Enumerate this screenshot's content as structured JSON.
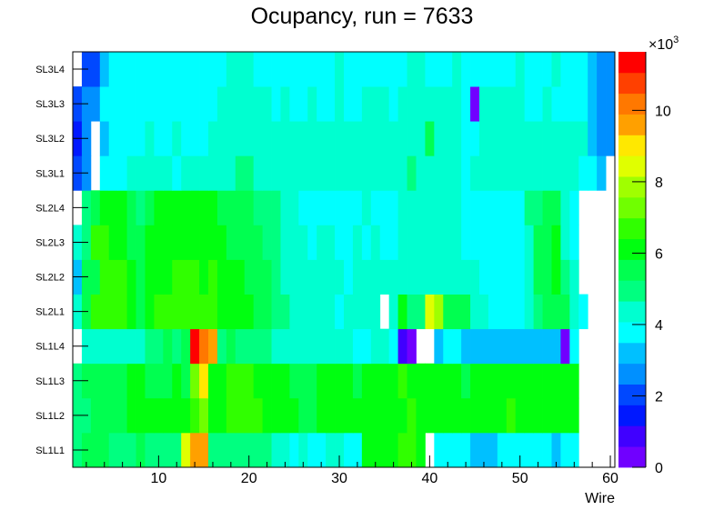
{
  "chart_data": {
    "type": "heatmap",
    "title": "Ocupancy, run = 7633",
    "xlabel": "Wire",
    "ylabel": "",
    "xlim": [
      0.5,
      60.5
    ],
    "x_bins": 60,
    "x_ticks": [
      "10",
      "20",
      "30",
      "40",
      "50",
      "60"
    ],
    "y_categories": [
      "SL1L1",
      "SL1L2",
      "SL1L3",
      "SL1L4",
      "SL2L1",
      "SL2L2",
      "SL2L3",
      "SL2L4",
      "SL3L1",
      "SL3L2",
      "SL3L3",
      "SL3L4"
    ],
    "z_range": [
      0,
      11640
    ],
    "z_ticks": [
      "0",
      "2",
      "4",
      "6",
      "8",
      "10"
    ],
    "z_tick_values": [
      0,
      2000,
      4000,
      6000,
      8000,
      10000
    ],
    "z_multiplier_label": "×10",
    "z_multiplier_exp": "3",
    "palette": [
      "#7000ff",
      "#4000ff",
      "#0018ff",
      "#0048ff",
      "#0090ff",
      "#00c0ff",
      "#00ffff",
      "#00ffd0",
      "#00ff80",
      "#00ff50",
      "#00ff10",
      "#30ff00",
      "#70ff00",
      "#a0ff00",
      "#e0ff00",
      "#ffe800",
      "#ffa000",
      "#ff7800",
      "#ff4000",
      "#ff0000"
    ],
    "values": [
      [
        4950,
        5530,
        5530,
        5530,
        4950,
        4950,
        4950,
        5530,
        4950,
        4950,
        4950,
        4950,
        8440,
        9600,
        9600,
        4950,
        4950,
        4950,
        4950,
        4950,
        4950,
        4950,
        4370,
        4370,
        3780,
        4370,
        3780,
        3780,
        4370,
        4370,
        3780,
        3780,
        6110,
        6110,
        6110,
        6110,
        6690,
        6690,
        6110,
        0,
        3780,
        3780,
        3780,
        3780,
        3200,
        3200,
        3200,
        3780,
        3780,
        3780,
        3780,
        3780,
        3780,
        3200,
        3780,
        3780,
        0,
        0,
        0,
        0
      ],
      [
        4950,
        4950,
        5530,
        5530,
        5530,
        5530,
        6110,
        6110,
        6110,
        6110,
        6110,
        6110,
        6110,
        6690,
        7280,
        6110,
        6110,
        6690,
        6690,
        6690,
        6690,
        6110,
        6110,
        6110,
        6110,
        5530,
        5530,
        6110,
        6110,
        6110,
        6110,
        6110,
        6110,
        6110,
        6110,
        6110,
        6110,
        6690,
        6110,
        6110,
        6110,
        6110,
        6110,
        6110,
        6110,
        6110,
        6110,
        6110,
        6690,
        6110,
        6110,
        6110,
        6110,
        6110,
        6110,
        6110,
        0,
        0,
        0,
        0
      ],
      [
        4950,
        5530,
        5530,
        5530,
        5530,
        5530,
        6110,
        6110,
        5530,
        5530,
        5530,
        6110,
        5530,
        7280,
        9020,
        6110,
        6110,
        6690,
        6690,
        6690,
        6110,
        6110,
        6110,
        6110,
        5530,
        5530,
        5530,
        6110,
        6110,
        6110,
        6110,
        5530,
        6110,
        6110,
        6110,
        6110,
        6690,
        6110,
        6110,
        6110,
        6110,
        6110,
        6110,
        5530,
        6110,
        6110,
        6110,
        6110,
        6110,
        6110,
        6110,
        6110,
        6110,
        6110,
        6110,
        6110,
        0,
        0,
        0,
        0
      ],
      [
        0,
        4370,
        4370,
        4370,
        4370,
        4370,
        4370,
        4370,
        4950,
        4950,
        5530,
        4950,
        5530,
        11350,
        10190,
        9600,
        4950,
        5530,
        4950,
        4950,
        4950,
        4950,
        4370,
        4370,
        4370,
        4370,
        4370,
        4370,
        4370,
        4370,
        4370,
        3780,
        3780,
        4370,
        4370,
        3780,
        870,
        290,
        0,
        0,
        3200,
        3780,
        3780,
        3200,
        3200,
        3200,
        3200,
        3200,
        3200,
        3200,
        3200,
        3200,
        3200,
        3200,
        290,
        3780,
        0,
        0,
        0,
        0
      ],
      [
        4370,
        5530,
        6690,
        6690,
        6690,
        6690,
        6110,
        5530,
        6110,
        6690,
        6690,
        6690,
        6690,
        6690,
        6690,
        6690,
        6110,
        6110,
        6110,
        6110,
        5530,
        5530,
        4950,
        4950,
        4370,
        4370,
        4370,
        4370,
        4370,
        3780,
        4370,
        4370,
        4370,
        4370,
        0,
        4370,
        6110,
        4950,
        4950,
        8440,
        7860,
        5530,
        5530,
        5530,
        4370,
        4370,
        3780,
        3780,
        3780,
        3780,
        4370,
        4950,
        5530,
        5530,
        5530,
        4370,
        3780,
        0,
        0,
        0
      ],
      [
        3200,
        5530,
        5530,
        6690,
        6690,
        6690,
        6110,
        5530,
        6110,
        6110,
        6110,
        6690,
        6690,
        6690,
        6110,
        6690,
        6110,
        6110,
        6110,
        5530,
        5530,
        5530,
        4950,
        4370,
        4370,
        4370,
        4370,
        4370,
        4370,
        4370,
        3780,
        4370,
        4370,
        4370,
        4370,
        4370,
        4370,
        4370,
        4370,
        4370,
        4370,
        4370,
        4370,
        4370,
        4370,
        3780,
        3780,
        3780,
        3780,
        3780,
        4370,
        5530,
        5530,
        6110,
        4950,
        4370,
        0,
        0,
        0,
        0
      ],
      [
        4370,
        4950,
        6690,
        6690,
        6110,
        6110,
        5530,
        5530,
        6110,
        6110,
        6110,
        6110,
        6110,
        6110,
        6110,
        6110,
        6110,
        5530,
        5530,
        5530,
        5530,
        4950,
        4950,
        4370,
        4370,
        4370,
        3780,
        4370,
        4370,
        3780,
        3780,
        4370,
        3780,
        4370,
        3780,
        3780,
        4370,
        4370,
        4370,
        4370,
        4370,
        4370,
        4370,
        3780,
        3780,
        3780,
        3780,
        3780,
        3780,
        3780,
        4370,
        5530,
        5530,
        6110,
        4370,
        3780,
        0,
        0,
        0,
        0
      ],
      [
        0,
        4950,
        5530,
        6110,
        6110,
        6110,
        5530,
        4950,
        5530,
        6110,
        6110,
        6110,
        6110,
        6110,
        6110,
        6110,
        5530,
        5530,
        5530,
        5530,
        4950,
        4950,
        4950,
        4370,
        4370,
        3780,
        3780,
        3780,
        3780,
        3780,
        3780,
        3780,
        4370,
        3780,
        3780,
        3780,
        4370,
        4370,
        4370,
        4370,
        4370,
        4370,
        4370,
        3780,
        3780,
        3780,
        3780,
        3780,
        3780,
        3780,
        4950,
        4950,
        5530,
        5530,
        4370,
        3780,
        0,
        0,
        0,
        0
      ],
      [
        2040,
        2620,
        0,
        3780,
        3780,
        3780,
        4370,
        4370,
        4370,
        4370,
        4370,
        3780,
        4370,
        4370,
        4370,
        4370,
        4370,
        4370,
        4950,
        4950,
        4370,
        4370,
        4370,
        4370,
        4370,
        4370,
        4370,
        4370,
        4370,
        4370,
        4370,
        4370,
        4370,
        4370,
        4370,
        4370,
        4370,
        4950,
        4370,
        4370,
        4370,
        4370,
        4370,
        3780,
        4370,
        4370,
        4370,
        4370,
        4370,
        4370,
        4370,
        4370,
        4370,
        4370,
        4370,
        4370,
        3780,
        3780,
        3200,
        0
      ],
      [
        1460,
        2620,
        0,
        3200,
        3780,
        3780,
        3780,
        3780,
        4370,
        3780,
        3780,
        4370,
        3780,
        3780,
        3780,
        4370,
        4370,
        4370,
        4370,
        4370,
        4370,
        4370,
        4370,
        4370,
        4370,
        4370,
        4370,
        4370,
        4370,
        4370,
        4370,
        4370,
        4370,
        4370,
        4370,
        4370,
        4370,
        4370,
        4370,
        5530,
        4370,
        4370,
        4370,
        3780,
        3780,
        4370,
        4370,
        4370,
        4370,
        4370,
        4370,
        4370,
        4370,
        4370,
        4370,
        4370,
        4370,
        3200,
        2620,
        2620
      ],
      [
        2040,
        2620,
        2620,
        3780,
        3780,
        3780,
        3780,
        3780,
        3780,
        3780,
        3780,
        3780,
        3780,
        3780,
        3780,
        3780,
        4370,
        4370,
        4370,
        4370,
        4370,
        4370,
        3780,
        4370,
        3780,
        3780,
        4370,
        3780,
        3780,
        4370,
        3780,
        3780,
        4370,
        4370,
        4370,
        3780,
        4370,
        4370,
        4370,
        4370,
        4370,
        4370,
        4370,
        3780,
        290,
        4370,
        4370,
        4370,
        4370,
        4370,
        3780,
        3780,
        4370,
        3780,
        3780,
        3780,
        3780,
        3200,
        2620,
        2620
      ],
      [
        0,
        2040,
        2040,
        3200,
        3780,
        3780,
        3780,
        3780,
        3780,
        3780,
        3780,
        3780,
        3780,
        3780,
        3780,
        3780,
        3780,
        4370,
        4370,
        4370,
        3780,
        3780,
        3780,
        3780,
        3780,
        3780,
        3780,
        3780,
        3780,
        4370,
        3780,
        3780,
        3780,
        3780,
        3780,
        3780,
        3780,
        4370,
        4370,
        3780,
        3780,
        3780,
        4370,
        3780,
        3780,
        3780,
        3780,
        3780,
        3780,
        4370,
        3780,
        3780,
        3780,
        4370,
        3780,
        3780,
        3780,
        3200,
        2620,
        2620
      ]
    ]
  }
}
